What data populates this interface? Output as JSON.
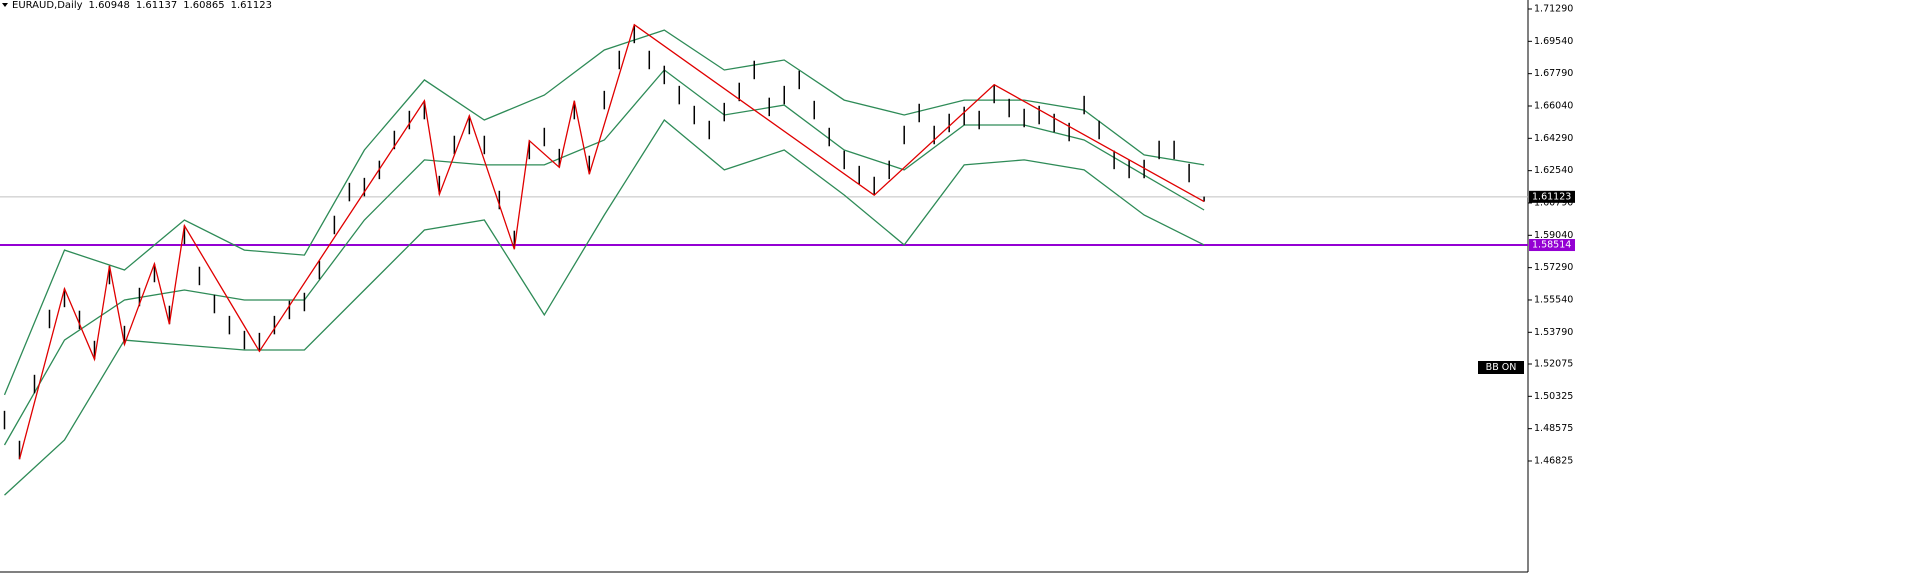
{
  "chart_data": {
    "type": "candlestick",
    "symbol": "EURAUD,Daily",
    "last_bar": {
      "open": 1.60948,
      "high": 1.61137,
      "low": 1.60865,
      "close": 1.61123
    },
    "ylim": [
      1.40816,
      1.71777
    ],
    "xlim": [
      -0.3,
      101.6
    ],
    "yticks": [
      {
        "value": 1.7129,
        "label": "1.71290"
      },
      {
        "value": 1.6954,
        "label": "1.69540"
      },
      {
        "value": 1.6779,
        "label": "1.67790"
      },
      {
        "value": 1.6604,
        "label": "1.66040"
      },
      {
        "value": 1.6429,
        "label": "1.64290"
      },
      {
        "value": 1.6254,
        "label": "1.62540"
      },
      {
        "value": 1.6079,
        "label": "1.60790"
      },
      {
        "value": 1.5904,
        "label": "1.59040"
      },
      {
        "value": 1.5729,
        "label": "1.57290"
      },
      {
        "value": 1.5554,
        "label": "1.55540"
      },
      {
        "value": 1.5379,
        "label": "1.53790"
      },
      {
        "value": 1.52075,
        "label": "1.52075"
      },
      {
        "value": 1.50325,
        "label": "1.50325"
      },
      {
        "value": 1.48575,
        "label": "1.48575"
      },
      {
        "value": 1.46825,
        "label": "1.46825"
      }
    ],
    "bar_color": "#000000",
    "high": [
      1.4954,
      1.4792,
      1.5149,
      1.5501,
      1.5615,
      1.5496,
      1.5333,
      1.5739,
      1.5414,
      1.562,
      1.575,
      1.5523,
      1.5956,
      1.5734,
      1.5582,
      1.5468,
      1.5387,
      1.5376,
      1.5468,
      1.555,
      1.5593,
      1.5766,
      1.601,
      1.6188,
      1.6215,
      1.6308,
      1.647,
      1.6578,
      1.6632,
      1.6226,
      1.6443,
      1.6551,
      1.6443,
      1.6145,
      1.5929,
      1.6416,
      1.6486,
      1.6372,
      1.6632,
      1.6335,
      1.6686,
      1.6903,
      1.7044,
      1.6903,
      1.6822,
      1.6713,
      1.6605,
      1.6524,
      1.6621,
      1.673,
      1.6849,
      1.6649,
      1.6713,
      1.6795,
      1.6632,
      1.6486,
      1.6362,
      1.628,
      1.6221,
      1.6308,
      1.6497,
      1.6616,
      1.6497,
      1.6562,
      1.66,
      1.6578,
      1.6719,
      1.6643,
      1.6589,
      1.6605,
      1.6562,
      1.6513,
      1.6659,
      1.6524,
      1.6362,
      1.6313,
      1.6313,
      1.6416,
      1.6416,
      1.6291,
      1.61137
    ],
    "low": [
      1.4854,
      1.4692,
      1.5049,
      1.5401,
      1.5515,
      1.5396,
      1.5233,
      1.5639,
      1.5314,
      1.552,
      1.565,
      1.5423,
      1.5856,
      1.5634,
      1.5482,
      1.5368,
      1.5287,
      1.5276,
      1.5368,
      1.545,
      1.5493,
      1.5666,
      1.591,
      1.6088,
      1.6115,
      1.6208,
      1.637,
      1.6478,
      1.6532,
      1.6126,
      1.6343,
      1.6451,
      1.6343,
      1.6045,
      1.5829,
      1.6316,
      1.6386,
      1.6272,
      1.6532,
      1.6235,
      1.6586,
      1.6803,
      1.6944,
      1.6803,
      1.6722,
      1.6613,
      1.6505,
      1.6424,
      1.6521,
      1.663,
      1.6749,
      1.6549,
      1.6613,
      1.6695,
      1.6532,
      1.6386,
      1.6262,
      1.618,
      1.6121,
      1.6208,
      1.6397,
      1.6516,
      1.6397,
      1.6462,
      1.65,
      1.6478,
      1.6619,
      1.6543,
      1.6489,
      1.6505,
      1.6462,
      1.6413,
      1.6559,
      1.6424,
      1.6262,
      1.6213,
      1.6213,
      1.6316,
      1.6316,
      1.6191,
      1.60865
    ],
    "bands": {
      "color": "#2e8b57",
      "x": [
        0,
        4,
        8,
        12,
        16,
        20,
        24,
        28,
        32,
        36,
        40,
        44,
        48,
        52,
        56,
        60,
        64,
        68,
        72,
        76,
        80
      ],
      "upper": [
        1.504,
        1.5824,
        1.5716,
        1.5987,
        1.5824,
        1.5797,
        1.6366,
        1.6745,
        1.6528,
        1.6663,
        1.6907,
        1.7015,
        1.6799,
        1.6853,
        1.6636,
        1.6555,
        1.6636,
        1.6636,
        1.6582,
        1.6339,
        1.6285
      ],
      "middle": [
        1.4769,
        1.5337,
        1.5554,
        1.5608,
        1.5554,
        1.5554,
        1.5987,
        1.6312,
        1.6285,
        1.6285,
        1.642,
        1.6799,
        1.6555,
        1.6609,
        1.6366,
        1.6258,
        1.6501,
        1.6501,
        1.642,
        1.623,
        1.6041
      ],
      "lower": [
        1.4498,
        1.4796,
        1.5337,
        1.531,
        1.5283,
        1.5283,
        1.5608,
        1.5933,
        1.5987,
        1.5473,
        1.6014,
        1.6528,
        1.6258,
        1.6366,
        1.6122,
        1.5852,
        1.6285,
        1.6312,
        1.6258,
        1.6014,
        1.5852
      ]
    },
    "zigzag": {
      "color": "#e00000",
      "x": [
        1,
        4,
        6,
        7,
        8,
        10,
        11,
        12,
        17,
        28,
        29,
        31,
        34,
        35,
        37,
        38,
        39,
        42,
        58,
        66,
        80
      ],
      "values": [
        1.4692,
        1.5615,
        1.5233,
        1.5739,
        1.5314,
        1.575,
        1.5423,
        1.5956,
        1.5276,
        1.6632,
        1.6126,
        1.6551,
        1.5829,
        1.6416,
        1.6272,
        1.6632,
        1.6235,
        1.7044,
        1.6121,
        1.6719,
        1.60865
      ]
    },
    "hline": {
      "value": 1.58514,
      "color": "#9400d3"
    },
    "indicator_label": "BB ON"
  }
}
